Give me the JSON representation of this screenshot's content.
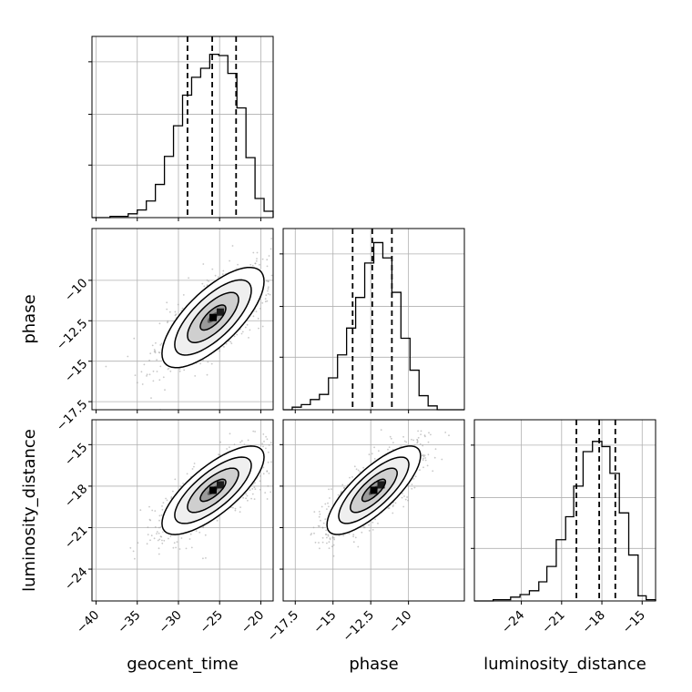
{
  "chart_data": {
    "type": "corner",
    "params": [
      {
        "name": "geocent_time",
        "range": [
          -40.5,
          -18.5
        ],
        "ticks": [
          -40,
          -35,
          -30,
          -25,
          -20
        ],
        "median": -25.9,
        "q16": -28.9,
        "q84": -23.0,
        "hist": {
          "edges": [
            -40.5,
            -39.4,
            -38.3,
            -37.2,
            -36.1,
            -35.0,
            -33.9,
            -32.8,
            -31.7,
            -30.6,
            -29.5,
            -28.4,
            -27.3,
            -26.2,
            -25.1,
            -24.0,
            -22.9,
            -21.8,
            -20.7,
            -19.6,
            -18.5
          ],
          "counts": [
            0,
            0,
            1,
            1,
            3,
            6,
            13,
            26,
            48,
            72,
            96,
            110,
            117,
            128,
            127,
            113,
            86,
            47,
            15,
            5
          ]
        }
      },
      {
        "name": "phase",
        "range": [
          -18.3,
          -6.3
        ],
        "ticks": [
          -17.5,
          -15.0,
          -12.5,
          -10.0
        ],
        "median": -12.4,
        "q16": -13.7,
        "q84": -11.1,
        "hist": {
          "edges": [
            -18.3,
            -17.7,
            -17.1,
            -16.5,
            -15.9,
            -15.3,
            -14.7,
            -14.1,
            -13.5,
            -12.9,
            -12.3,
            -11.7,
            -11.1,
            -10.5,
            -9.9,
            -9.3,
            -8.7,
            -8.1,
            -7.5,
            -6.9,
            -6.3
          ],
          "counts": [
            0,
            2,
            4,
            8,
            12,
            25,
            43,
            64,
            88,
            115,
            131,
            119,
            92,
            56,
            31,
            11,
            3,
            0,
            0,
            0
          ]
        }
      },
      {
        "name": "luminosity_distance",
        "range": [
          -27.5,
          -14.0
        ],
        "ticks": [
          -24,
          -21,
          -18,
          -15
        ],
        "median": -18.2,
        "q16": -19.9,
        "q84": -17.0,
        "hist": {
          "edges": [
            -27.5,
            -26.8,
            -26.1,
            -25.4,
            -24.8,
            -24.1,
            -23.4,
            -22.7,
            -22.1,
            -21.4,
            -20.7,
            -20.1,
            -19.4,
            -18.7,
            -18.0,
            -17.4,
            -16.7,
            -16.0,
            -15.3,
            -14.7,
            -14.0
          ],
          "counts": [
            0,
            0,
            1,
            1,
            3,
            5,
            8,
            15,
            27,
            48,
            66,
            90,
            117,
            125,
            121,
            100,
            69,
            36,
            4,
            1
          ]
        }
      }
    ],
    "panel_y_ranges": {
      "phase": [
        -18.0,
        -6.8
      ],
      "luminosity_distance": [
        -26.3,
        -13.2
      ]
    },
    "hist_ylim": [
      0,
      142
    ],
    "pairs": [
      {
        "x": "geocent_time",
        "y": "phase",
        "center": [
          -25.8,
          -12.3
        ],
        "sd": [
          3.1,
          1.55
        ],
        "corr": 0.72
      },
      {
        "x": "geocent_time",
        "y": "luminosity_distance",
        "center": [
          -25.8,
          -18.3
        ],
        "sd": [
          3.1,
          1.6
        ],
        "corr": 0.75
      },
      {
        "x": "phase",
        "y": "luminosity_distance",
        "center": [
          -12.3,
          -18.3
        ],
        "sd": [
          1.55,
          1.6
        ],
        "corr": 0.78
      }
    ],
    "contour_levels_sigma": [
      0.5,
      1.0,
      1.5,
      2.0
    ],
    "colors": {
      "line": "#000000",
      "grid": "#b0b0b0",
      "points": "#9a9a9a"
    }
  }
}
